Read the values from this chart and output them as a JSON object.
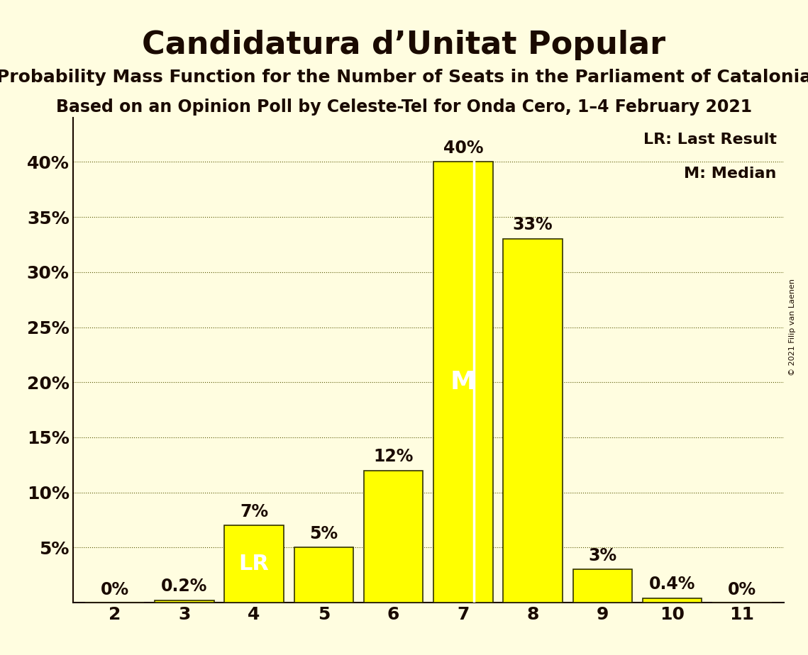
{
  "title": "Candidatura d’Unitat Popular",
  "subtitle1": "Probability Mass Function for the Number of Seats in the Parliament of Catalonia",
  "subtitle2": "Based on an Opinion Poll by Celeste-Tel for Onda Cero, 1–4 February 2021",
  "copyright": "© 2021 Filip van Laenen",
  "categories": [
    2,
    3,
    4,
    5,
    6,
    7,
    8,
    9,
    10,
    11
  ],
  "values": [
    0.0,
    0.2,
    7.0,
    5.0,
    12.0,
    40.0,
    33.0,
    3.0,
    0.4,
    0.0
  ],
  "labels": [
    "0%",
    "0.2%",
    "7%",
    "5%",
    "12%",
    "40%",
    "33%",
    "3%",
    "0.4%",
    "0%"
  ],
  "bar_color": "#FFFF00",
  "bar_edge_color": "#333300",
  "background_color": "#FFFDE0",
  "text_color": "#1a0a00",
  "title_fontsize": 32,
  "subtitle_fontsize": 18,
  "label_fontsize": 17,
  "axis_fontsize": 18,
  "yticks": [
    0,
    5,
    10,
    15,
    20,
    25,
    30,
    35,
    40
  ],
  "ytick_labels": [
    "",
    "5%",
    "10%",
    "15%",
    "20%",
    "25%",
    "30%",
    "35%",
    "40%"
  ],
  "ylim": [
    0,
    44
  ],
  "median_seat": 7,
  "last_result_seat": 4,
  "legend_lr": "LR: Last Result",
  "legend_m": "M: Median"
}
